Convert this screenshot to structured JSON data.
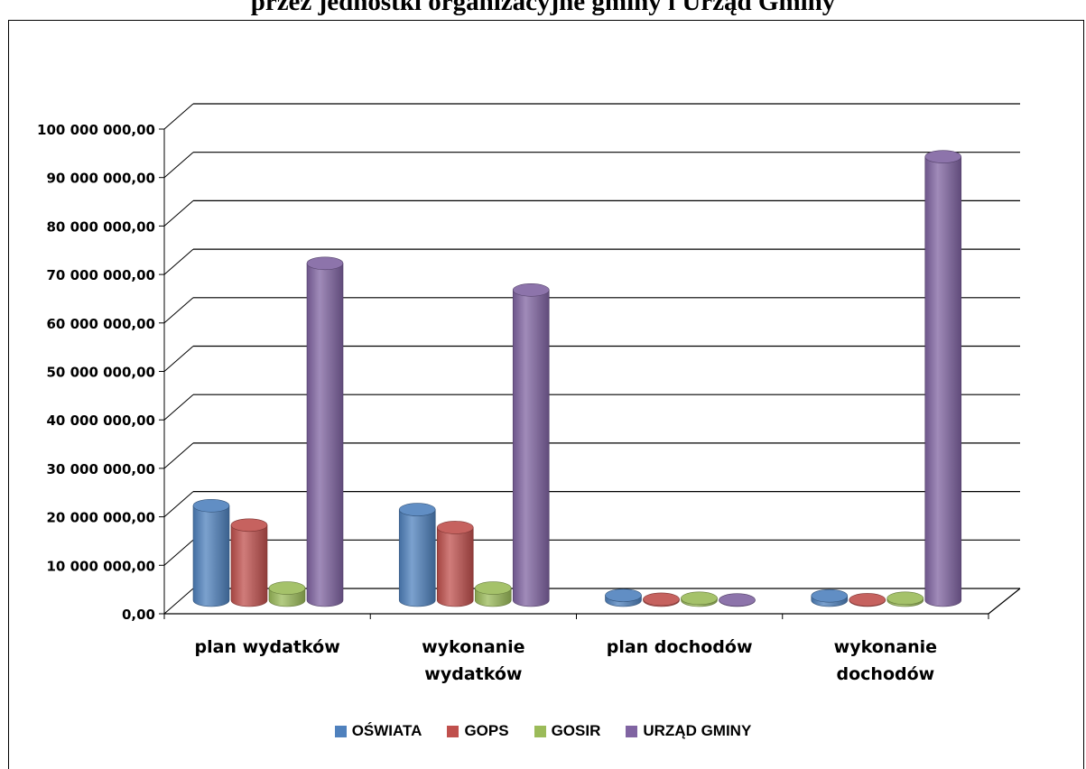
{
  "chart_data": {
    "type": "bar",
    "title": "przez jednostki organizacyjne gminy i Urząd Gminy",
    "categories": [
      [
        "plan wydatków"
      ],
      [
        "wykonanie",
        "wydatków"
      ],
      [
        "plan dochodów"
      ],
      [
        "wykonanie",
        "dochodów"
      ]
    ],
    "series": [
      {
        "name": "OŚWIATA",
        "color": "#4F81BD",
        "values": [
          19500000,
          18700000,
          1000000,
          900000
        ]
      },
      {
        "name": "GOPS",
        "color": "#C0504D",
        "values": [
          15500000,
          15000000,
          200000,
          100000
        ]
      },
      {
        "name": "GOSIR",
        "color": "#9BBB59",
        "values": [
          2500000,
          2500000,
          400000,
          400000
        ]
      },
      {
        "name": "URZĄD GMINY",
        "color": "#8064A2",
        "values": [
          69500000,
          64000000,
          50000,
          91500000
        ]
      }
    ],
    "ylim": [
      0,
      100000000
    ],
    "y_ticks": [
      "0,00",
      "10 000 000,00",
      "20 000 000,00",
      "30 000 000,00",
      "40 000 000,00",
      "50 000 000,00",
      "60 000 000,00",
      "70 000 000,00",
      "80 000 000,00",
      "90 000 000,00",
      "100 000 000,00"
    ],
    "grid": true,
    "legend_position": "bottom"
  }
}
